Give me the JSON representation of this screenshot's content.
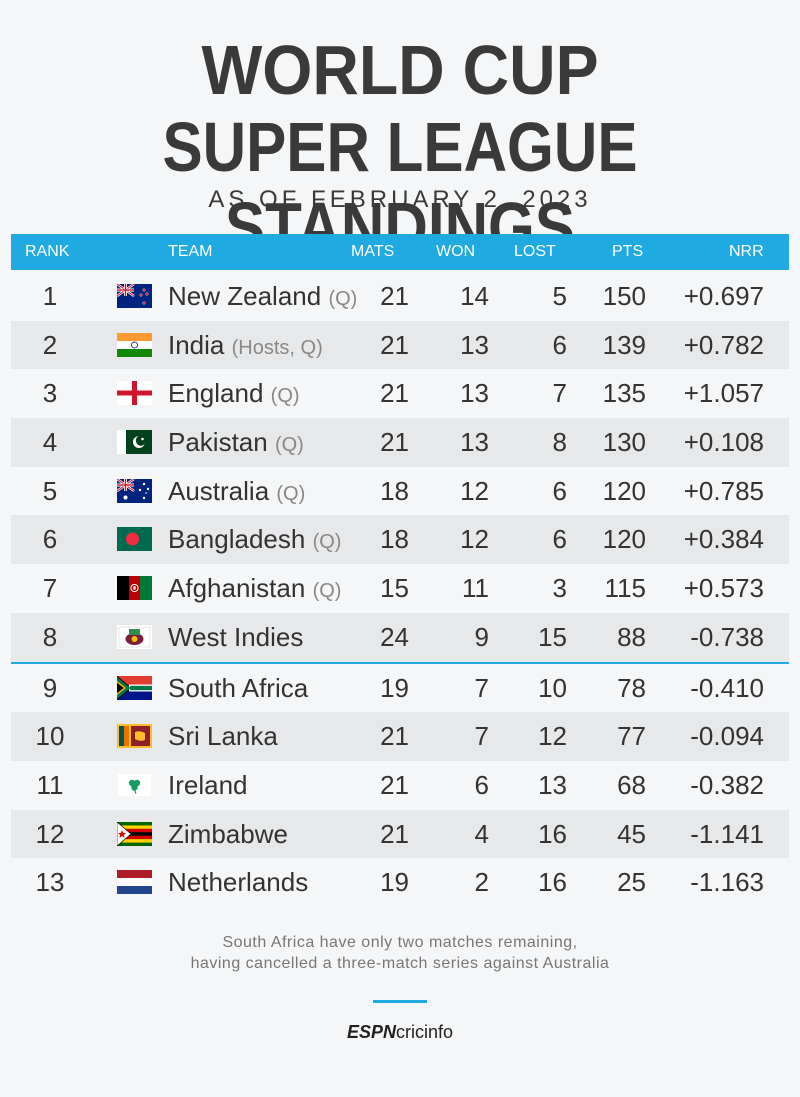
{
  "title_line1": "WORLD CUP",
  "title_line2": "SUPER LEAGUE STANDINGS",
  "subtitle": "AS OF FEBRUARY 2, 2023",
  "headers": {
    "rank": "RANK",
    "team": "TEAM",
    "mats": "MATS",
    "won": "WON",
    "lost": "LOST",
    "pts": "PTS",
    "nrr": "NRR"
  },
  "rows": [
    {
      "rank": "1",
      "team": "New Zealand",
      "note": "(Q)",
      "flag": "nz-flag-icon",
      "mats": "21",
      "won": "14",
      "lost": "5",
      "pts": "150",
      "nrr": "+0.697"
    },
    {
      "rank": "2",
      "team": "India",
      "note": "(Hosts, Q)",
      "flag": "india-flag-icon",
      "mats": "21",
      "won": "13",
      "lost": "6",
      "pts": "139",
      "nrr": "+0.782"
    },
    {
      "rank": "3",
      "team": "England",
      "note": "(Q)",
      "flag": "england-flag-icon",
      "mats": "21",
      "won": "13",
      "lost": "7",
      "pts": "135",
      "nrr": "+1.057"
    },
    {
      "rank": "4",
      "team": "Pakistan",
      "note": "(Q)",
      "flag": "pakistan-flag-icon",
      "mats": "21",
      "won": "13",
      "lost": "8",
      "pts": "130",
      "nrr": "+0.108"
    },
    {
      "rank": "5",
      "team": "Australia",
      "note": "(Q)",
      "flag": "australia-flag-icon",
      "mats": "18",
      "won": "12",
      "lost": "6",
      "pts": "120",
      "nrr": "+0.785"
    },
    {
      "rank": "6",
      "team": "Bangladesh",
      "note": "(Q)",
      "flag": "bangladesh-flag-icon",
      "mats": "18",
      "won": "12",
      "lost": "6",
      "pts": "120",
      "nrr": "+0.384"
    },
    {
      "rank": "7",
      "team": "Afghanistan",
      "note": "(Q)",
      "flag": "afghanistan-flag-icon",
      "mats": "15",
      "won": "11",
      "lost": "3",
      "pts": "115",
      "nrr": "+0.573"
    },
    {
      "rank": "8",
      "team": "West Indies",
      "note": "",
      "flag": "west-indies-flag-icon",
      "mats": "24",
      "won": "9",
      "lost": "15",
      "pts": "88",
      "nrr": "-0.738"
    },
    {
      "rank": "9",
      "team": "South Africa",
      "note": "",
      "flag": "south-africa-flag-icon",
      "mats": "19",
      "won": "7",
      "lost": "10",
      "pts": "78",
      "nrr": "-0.410"
    },
    {
      "rank": "10",
      "team": "Sri Lanka",
      "note": "",
      "flag": "sri-lanka-flag-icon",
      "mats": "21",
      "won": "7",
      "lost": "12",
      "pts": "77",
      "nrr": "-0.094"
    },
    {
      "rank": "11",
      "team": "Ireland",
      "note": "",
      "flag": "ireland-flag-icon",
      "mats": "21",
      "won": "6",
      "lost": "13",
      "pts": "68",
      "nrr": "-0.382"
    },
    {
      "rank": "12",
      "team": "Zimbabwe",
      "note": "",
      "flag": "zimbabwe-flag-icon",
      "mats": "21",
      "won": "4",
      "lost": "16",
      "pts": "45",
      "nrr": "-1.141"
    },
    {
      "rank": "13",
      "team": "Netherlands",
      "note": "",
      "flag": "netherlands-flag-icon",
      "mats": "19",
      "won": "2",
      "lost": "16",
      "pts": "25",
      "nrr": "-1.163"
    }
  ],
  "footnote_line1": "South Africa have only two matches remaining,",
  "footnote_line2": "having cancelled a three-match series against Australia",
  "logo_espn": "ESPN",
  "logo_cricinfo": "cricinfo",
  "colors": {
    "accent": "#1faae1",
    "alt_row": "#e6e8ea",
    "text": "#333333"
  }
}
